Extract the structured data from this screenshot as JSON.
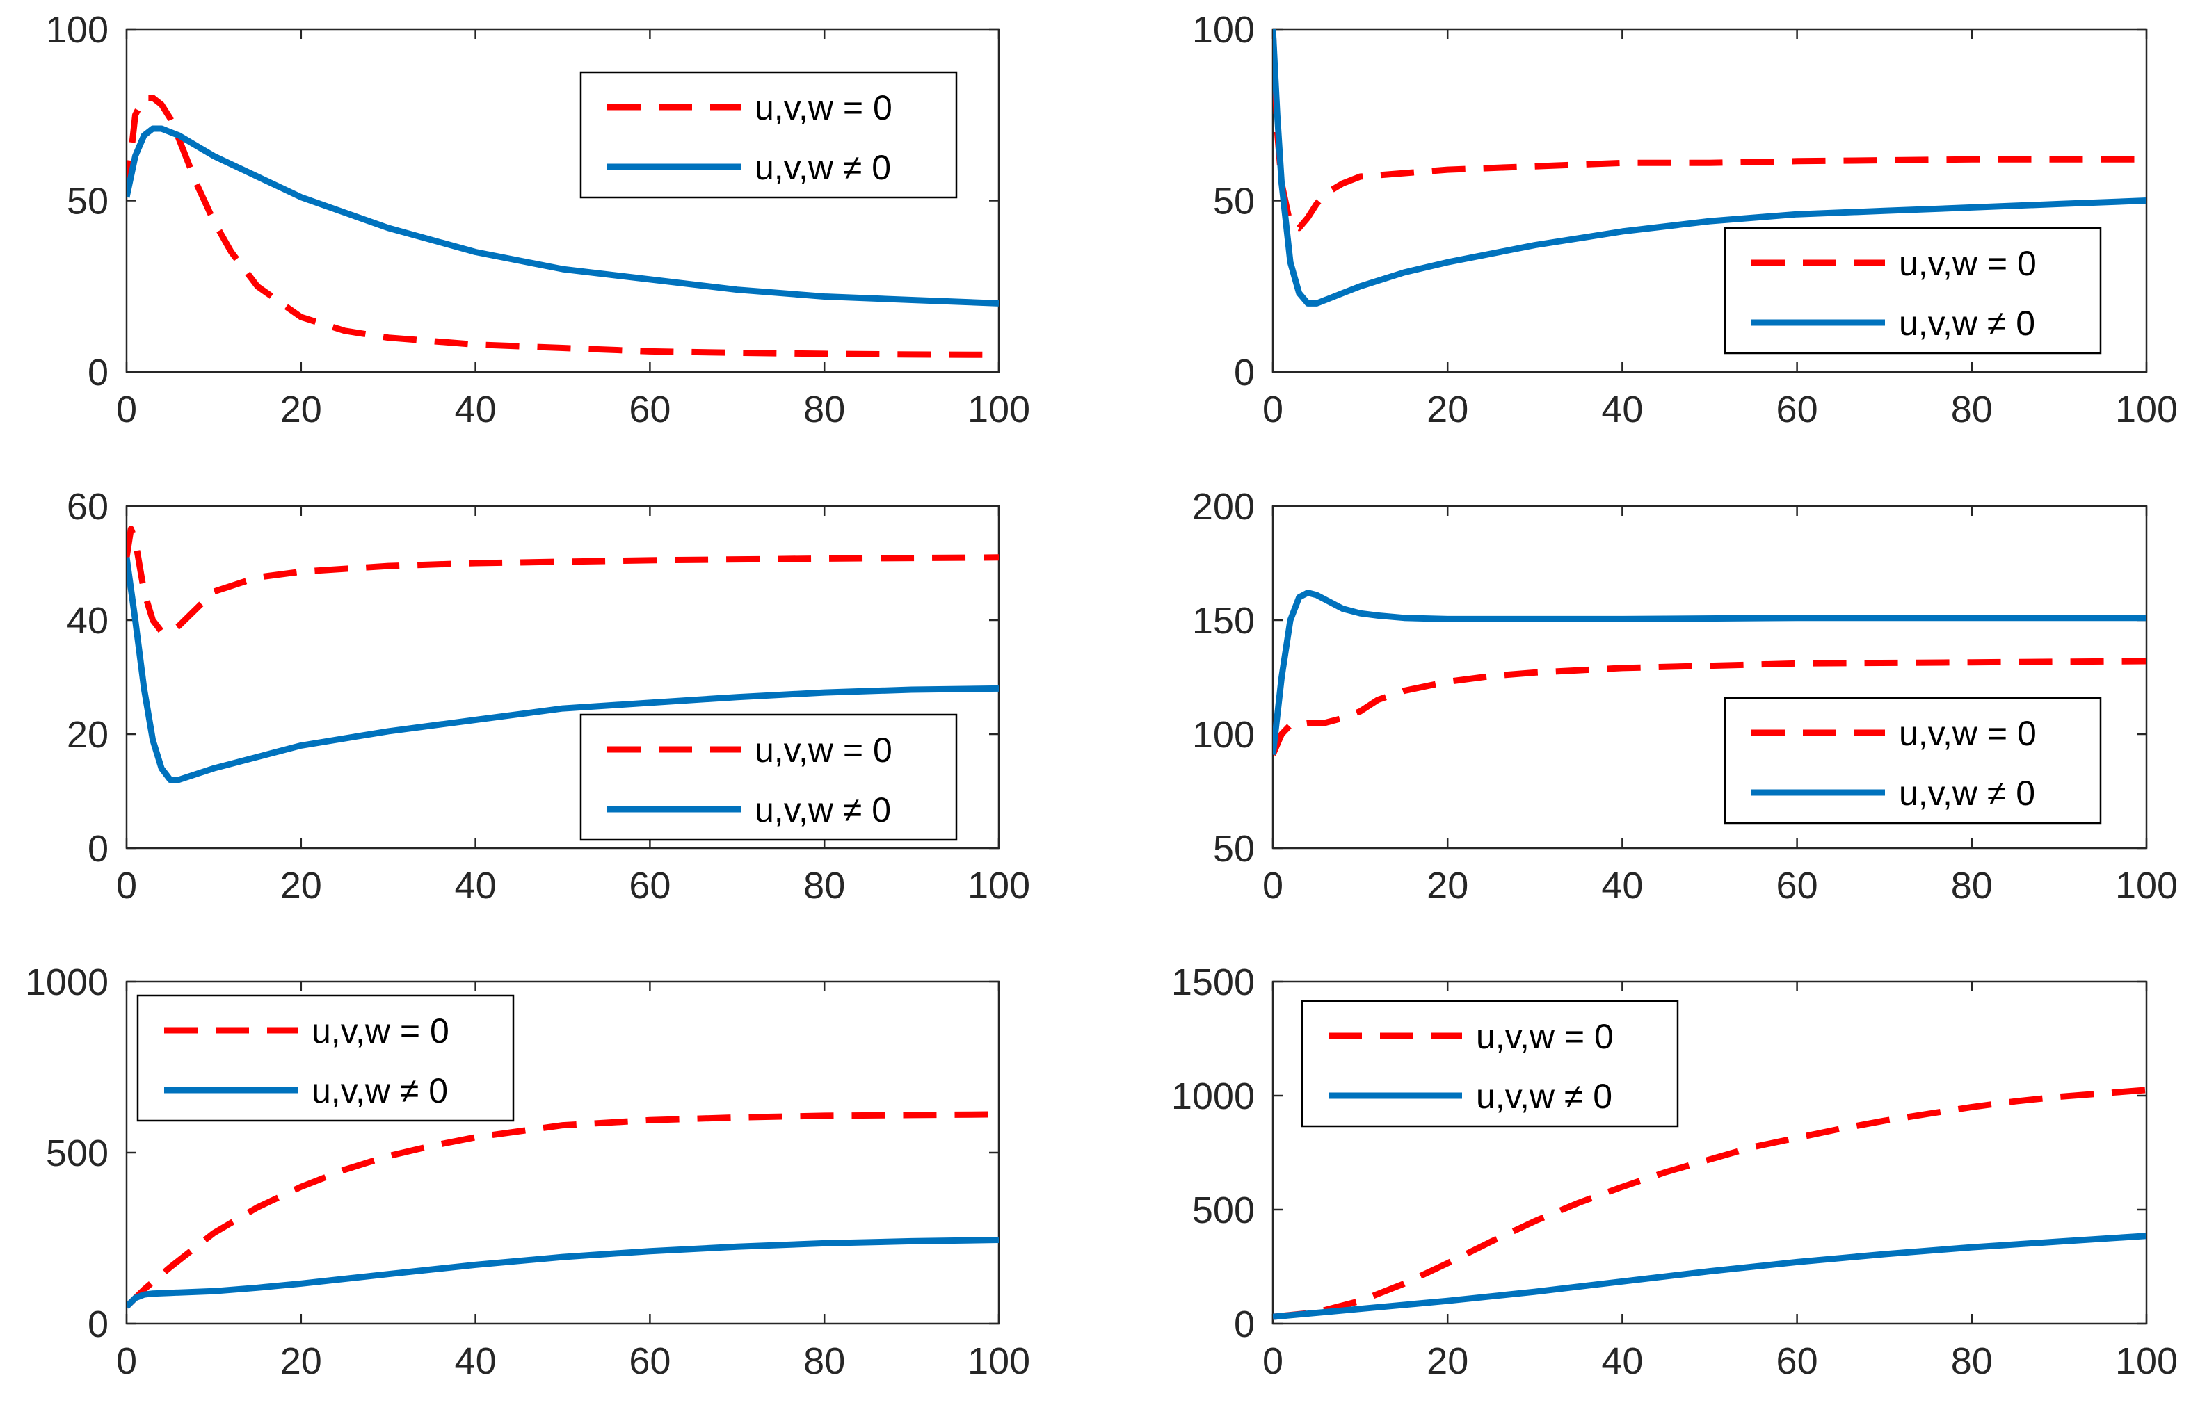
{
  "chart_data": [
    {
      "type": "line",
      "xlim": [
        0,
        100
      ],
      "ylim": [
        0,
        100
      ],
      "xticks": [
        "0",
        "20",
        "40",
        "60",
        "80",
        "100"
      ],
      "yticks": [
        "0",
        "50",
        "100"
      ],
      "legend_location": "top-right",
      "series": [
        {
          "name": "u,v,w = 0",
          "style": "dashed",
          "color": "#ff0000",
          "x": [
            0,
            1,
            2,
            3,
            4,
            5,
            6,
            8,
            10,
            12,
            15,
            20,
            25,
            30,
            40,
            50,
            60,
            70,
            80,
            90,
            100
          ],
          "y": [
            52,
            75,
            80,
            80,
            78,
            74,
            68,
            55,
            44,
            35,
            25,
            16,
            12,
            10,
            8,
            7,
            6,
            5.6,
            5.3,
            5.1,
            5
          ]
        },
        {
          "name": "u,v,w ≠ 0",
          "style": "solid",
          "color": "#0072bd",
          "x": [
            0,
            1,
            2,
            3,
            4,
            5,
            6,
            8,
            10,
            15,
            20,
            30,
            40,
            50,
            60,
            70,
            80,
            90,
            100
          ],
          "y": [
            51,
            63,
            69,
            71,
            71,
            70,
            69,
            66,
            63,
            57,
            51,
            42,
            35,
            30,
            27,
            24,
            22,
            21,
            20
          ]
        }
      ]
    },
    {
      "type": "line",
      "xlim": [
        0,
        100
      ],
      "ylim": [
        0,
        100
      ],
      "xticks": [
        "0",
        "20",
        "40",
        "60",
        "80",
        "100"
      ],
      "yticks": [
        "0",
        "50",
        "100"
      ],
      "legend_location": "bottom-right",
      "series": [
        {
          "name": "u,v,w = 0",
          "style": "dashed",
          "color": "#ff0000",
          "x": [
            0,
            0.5,
            1,
            2,
            3,
            4,
            5,
            6,
            8,
            10,
            15,
            20,
            30,
            40,
            50,
            60,
            80,
            100
          ],
          "y": [
            100,
            70,
            55,
            43,
            42,
            45,
            49,
            52,
            55,
            57,
            58,
            59,
            60,
            61,
            61,
            61.5,
            62,
            62
          ]
        },
        {
          "name": "u,v,w ≠ 0",
          "style": "solid",
          "color": "#0072bd",
          "x": [
            0,
            0.5,
            1,
            2,
            3,
            4,
            5,
            6,
            8,
            10,
            15,
            20,
            30,
            40,
            50,
            60,
            70,
            80,
            90,
            100
          ],
          "y": [
            100,
            75,
            55,
            32,
            23,
            20,
            20,
            21,
            23,
            25,
            29,
            32,
            37,
            41,
            44,
            46,
            47,
            48,
            49,
            50
          ]
        }
      ]
    },
    {
      "type": "line",
      "xlim": [
        0,
        100
      ],
      "ylim": [
        0,
        60
      ],
      "xticks": [
        "0",
        "20",
        "40",
        "60",
        "80",
        "100"
      ],
      "yticks": [
        "0",
        "20",
        "40",
        "60"
      ],
      "legend_location": "bottom-right",
      "series": [
        {
          "name": "u,v,w = 0",
          "style": "dashed",
          "color": "#ff0000",
          "x": [
            0,
            0.5,
            1,
            2,
            3,
            4,
            5,
            6,
            8,
            10,
            15,
            20,
            30,
            40,
            60,
            80,
            100
          ],
          "y": [
            51,
            56,
            54,
            45,
            40,
            38,
            38,
            39,
            42,
            45,
            47.5,
            48.5,
            49.5,
            50,
            50.5,
            50.8,
            51
          ]
        },
        {
          "name": "u,v,w ≠ 0",
          "style": "solid",
          "color": "#0072bd",
          "x": [
            0,
            1,
            2,
            3,
            4,
            5,
            6,
            8,
            10,
            15,
            20,
            30,
            40,
            50,
            60,
            70,
            80,
            90,
            100
          ],
          "y": [
            51,
            40,
            28,
            19,
            14,
            12,
            12,
            13,
            14,
            16,
            18,
            20.5,
            22.5,
            24.5,
            25.5,
            26.5,
            27.3,
            27.8,
            28
          ]
        }
      ]
    },
    {
      "type": "line",
      "xlim": [
        0,
        100
      ],
      "ylim": [
        50,
        200
      ],
      "xticks": [
        "0",
        "20",
        "40",
        "60",
        "80",
        "100"
      ],
      "yticks": [
        "50",
        "100",
        "150",
        "200"
      ],
      "legend_location": "bottom-right",
      "series": [
        {
          "name": "u,v,w = 0",
          "style": "dashed",
          "color": "#ff0000",
          "x": [
            0,
            1,
            2,
            4,
            6,
            8,
            10,
            12,
            15,
            20,
            25,
            30,
            40,
            50,
            60,
            80,
            100
          ],
          "y": [
            91,
            100,
            104,
            105,
            105,
            107,
            110,
            115,
            119,
            123,
            125.5,
            127,
            129,
            130,
            131,
            131.5,
            132
          ]
        },
        {
          "name": "u,v,w ≠ 0",
          "style": "solid",
          "color": "#0072bd",
          "x": [
            0,
            1,
            2,
            3,
            4,
            5,
            6,
            8,
            10,
            12,
            15,
            20,
            30,
            40,
            60,
            80,
            100
          ],
          "y": [
            91,
            125,
            150,
            160,
            162,
            161,
            159,
            155,
            153,
            152,
            151,
            150.5,
            150.5,
            150.5,
            151,
            151,
            151
          ]
        }
      ]
    },
    {
      "type": "line",
      "xlim": [
        0,
        100
      ],
      "ylim": [
        0,
        1000
      ],
      "xticks": [
        "0",
        "20",
        "40",
        "60",
        "80",
        "100"
      ],
      "yticks": [
        "0",
        "500",
        "1000"
      ],
      "legend_location": "top-left",
      "series": [
        {
          "name": "u,v,w = 0",
          "style": "dashed",
          "color": "#ff0000",
          "x": [
            0,
            2,
            5,
            10,
            15,
            20,
            25,
            30,
            35,
            40,
            50,
            60,
            70,
            80,
            90,
            100
          ],
          "y": [
            50,
            100,
            165,
            265,
            340,
            400,
            450,
            490,
            520,
            545,
            580,
            595,
            603,
            608,
            610,
            612
          ]
        },
        {
          "name": "u,v,w ≠ 0",
          "style": "solid",
          "color": "#0072bd",
          "x": [
            0,
            1,
            2,
            3,
            5,
            10,
            15,
            20,
            30,
            40,
            50,
            60,
            70,
            80,
            90,
            100
          ],
          "y": [
            50,
            75,
            85,
            88,
            90,
            95,
            105,
            117,
            145,
            172,
            195,
            212,
            225,
            235,
            241,
            245
          ]
        }
      ]
    },
    {
      "type": "line",
      "xlim": [
        0,
        100
      ],
      "ylim": [
        0,
        1500
      ],
      "xticks": [
        "0",
        "20",
        "40",
        "60",
        "80",
        "100"
      ],
      "yticks": [
        "0",
        "500",
        "1000",
        "1500"
      ],
      "legend_location": "top-left",
      "series": [
        {
          "name": "u,v,w = 0",
          "style": "dashed",
          "color": "#ff0000",
          "x": [
            0,
            5,
            10,
            15,
            20,
            25,
            30,
            35,
            40,
            45,
            50,
            55,
            60,
            65,
            70,
            75,
            80,
            85,
            90,
            95,
            100
          ],
          "y": [
            30,
            50,
            100,
            175,
            265,
            360,
            450,
            530,
            600,
            665,
            720,
            775,
            815,
            855,
            890,
            920,
            950,
            975,
            995,
            1010,
            1025
          ]
        },
        {
          "name": "u,v,w ≠ 0",
          "style": "solid",
          "color": "#0072bd",
          "x": [
            0,
            10,
            20,
            30,
            40,
            50,
            60,
            70,
            80,
            90,
            100
          ],
          "y": [
            30,
            65,
            100,
            140,
            185,
            230,
            270,
            305,
            335,
            360,
            385
          ]
        }
      ]
    }
  ]
}
